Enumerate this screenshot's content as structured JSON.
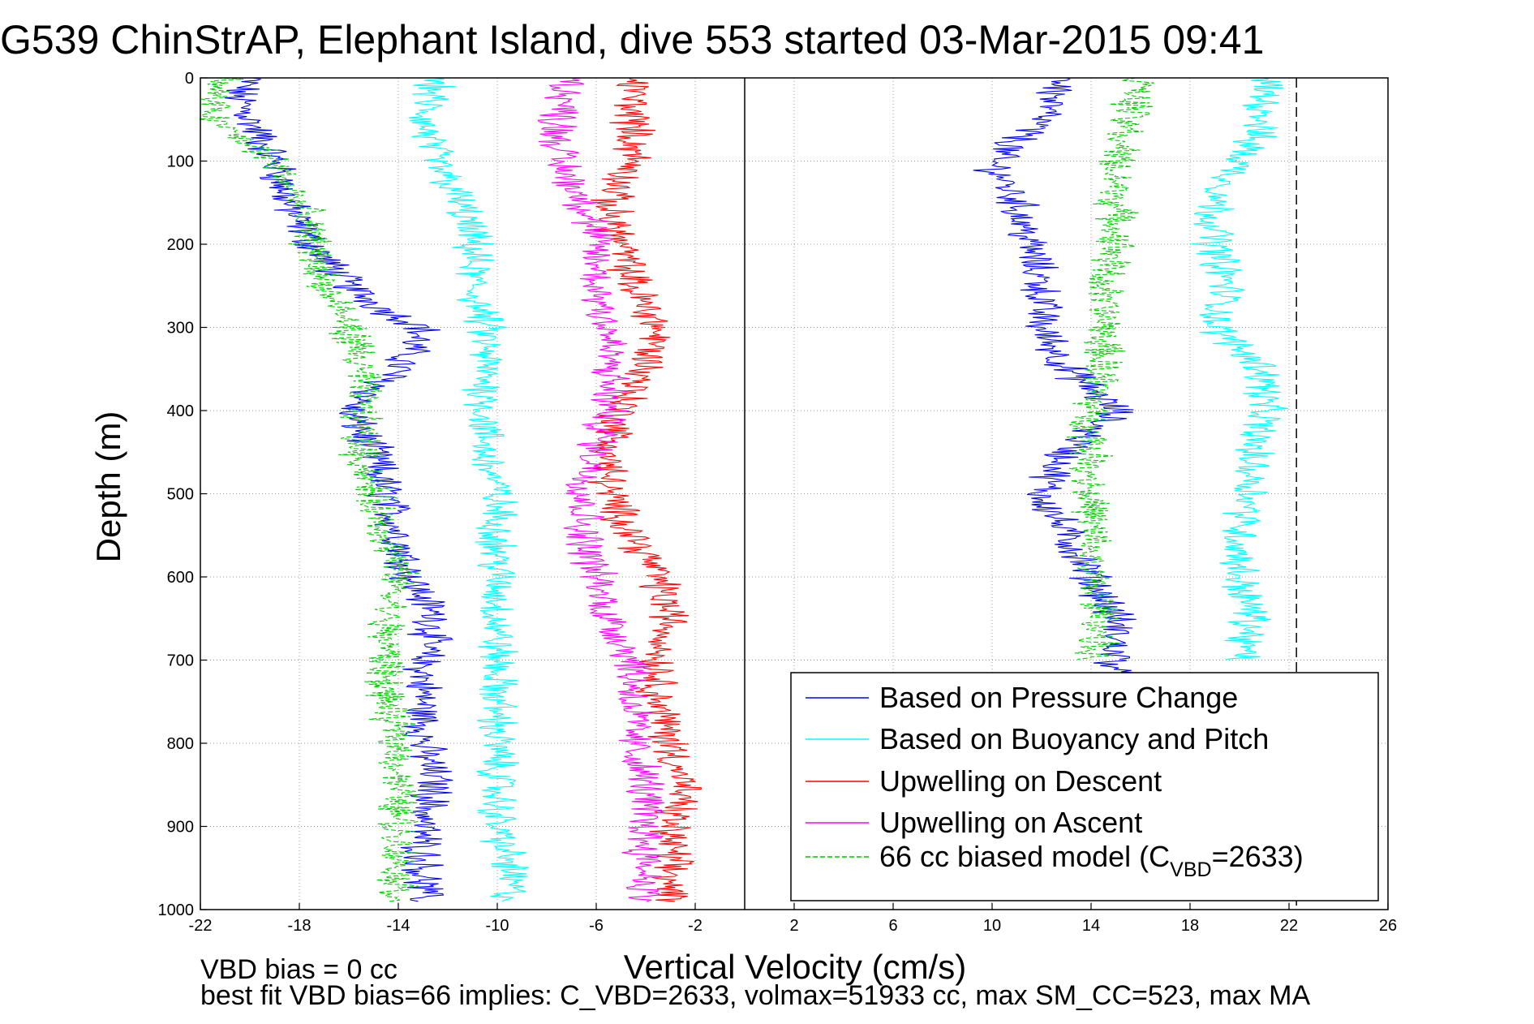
{
  "chart_data": {
    "type": "line",
    "title": "G539 ChinStrAP, Elephant Island, dive 553 started 03-Mar-2015 09:41",
    "xlabel": "Vertical Velocity (cm/s)",
    "ylabel": "Depth (m)",
    "xlim": [
      -22,
      26
    ],
    "ylim": [
      0,
      1000
    ],
    "y_reversed": true,
    "grid": true,
    "x_ticks": [
      -22,
      -18,
      -14,
      -10,
      -6,
      -2,
      2,
      6,
      10,
      14,
      18,
      22,
      26
    ],
    "y_ticks": [
      0,
      100,
      200,
      300,
      400,
      500,
      600,
      700,
      800,
      900,
      1000
    ],
    "reference_lines": [
      {
        "x": 0,
        "style": "solid",
        "color": "#000000"
      },
      {
        "x": 22.3,
        "style": "dashed",
        "color": "#000000"
      }
    ],
    "legend_placement": "bottom-right",
    "legend": [
      {
        "label": "Based on Pressure Change",
        "color": "#0000ff",
        "style": "solid"
      },
      {
        "label": "Based on Buoyancy and Pitch",
        "color": "#00ffff",
        "style": "solid"
      },
      {
        "label": "Upwelling on Descent",
        "color": "#ff0000",
        "style": "solid"
      },
      {
        "label": "Upwelling on Ascent",
        "color": "#ff00ff",
        "style": "solid"
      },
      {
        "label_main": "66 cc biased model (C",
        "label_sub": "VBD",
        "label_tail": "=2633)",
        "color": "#00cc00",
        "style": "dashed"
      }
    ],
    "series": [
      {
        "color": "#0000ff",
        "depth": [
          0,
          20,
          50,
          100,
          150,
          200,
          250,
          280,
          300,
          350,
          400,
          450,
          500,
          550,
          600,
          650,
          700,
          750,
          800,
          850,
          900,
          950,
          990
        ],
        "values": [
          -20,
          -20.5,
          -20,
          -19,
          -18.5,
          -17.5,
          -16,
          -14.5,
          -13,
          -14,
          -16,
          -15,
          -14.5,
          -14,
          -13.5,
          -12.5,
          -13,
          -13,
          -13,
          -12.5,
          -13,
          -13,
          -13
        ]
      },
      {
        "color": "#0000ff",
        "depth": [
          0,
          20,
          50,
          100,
          150,
          200,
          250,
          300,
          350,
          400,
          450,
          500,
          550,
          600,
          650,
          700,
          750
        ],
        "values": [
          13,
          12.5,
          12,
          10,
          11,
          11.5,
          12,
          12,
          13,
          15,
          13,
          12,
          13,
          14,
          15,
          15,
          15
        ]
      },
      {
        "color": "#00ffff",
        "depth": [
          0,
          50,
          100,
          150,
          200,
          250,
          300,
          350,
          400,
          450,
          500,
          550,
          600,
          650,
          700,
          750,
          800,
          850,
          900,
          950,
          990
        ],
        "values": [
          -12.5,
          -13,
          -12.5,
          -11.5,
          -11,
          -11,
          -10.5,
          -10.5,
          -10.5,
          -10.5,
          -10,
          -10,
          -10,
          -10,
          -10,
          -10,
          -10,
          -10,
          -10,
          -9.5,
          -9.5
        ]
      },
      {
        "color": "#00ffff",
        "depth": [
          0,
          50,
          100,
          150,
          200,
          250,
          300,
          350,
          400,
          450,
          500,
          550,
          600,
          650,
          700
        ],
        "values": [
          21,
          21,
          20,
          19,
          19,
          19.5,
          19,
          21,
          21,
          20.5,
          20.5,
          20,
          20,
          20.5,
          20
        ]
      },
      {
        "color": "#ff0000",
        "depth": [
          0,
          50,
          100,
          150,
          200,
          250,
          300,
          350,
          400,
          450,
          500,
          550,
          600,
          650,
          700,
          750,
          800,
          850,
          900,
          950,
          990
        ],
        "values": [
          -4.5,
          -4.5,
          -4.5,
          -5.5,
          -5,
          -4.5,
          -3.5,
          -4,
          -5,
          -5.5,
          -5.5,
          -4.5,
          -3.5,
          -3,
          -3.5,
          -3.5,
          -3,
          -2.5,
          -3,
          -3,
          -3
        ]
      },
      {
        "color": "#ff00ff",
        "depth": [
          0,
          50,
          100,
          150,
          200,
          250,
          300,
          350,
          400,
          450,
          500,
          550,
          600,
          650,
          700,
          750,
          800,
          850,
          900,
          950,
          990
        ],
        "values": [
          -7,
          -7.5,
          -7.5,
          -6.5,
          -6,
          -6,
          -5.5,
          -5.5,
          -5.5,
          -6,
          -6.5,
          -6.5,
          -6,
          -5.5,
          -4.5,
          -4.5,
          -4.5,
          -4,
          -4,
          -4,
          -4
        ]
      },
      {
        "color": "#00cc00",
        "dashed": true,
        "depth": [
          0,
          20,
          50,
          100,
          150,
          200,
          250,
          300,
          350,
          400,
          450,
          500,
          550,
          600,
          650,
          700,
          750,
          800,
          850,
          900,
          950,
          990
        ],
        "values": [
          -21,
          -21.5,
          -21.5,
          -19,
          -18,
          -17.5,
          -17,
          -16,
          -15.5,
          -15.5,
          -15.5,
          -15,
          -14.5,
          -14,
          -14.5,
          -14.5,
          -14.5,
          -14,
          -14,
          -14,
          -14,
          -14
        ]
      },
      {
        "color": "#00cc00",
        "dashed": true,
        "depth": [
          0,
          50,
          100,
          150,
          200,
          250,
          300,
          350,
          400,
          450,
          500,
          550,
          600,
          650,
          700
        ],
        "values": [
          16,
          15.5,
          15,
          15,
          15,
          14.5,
          14.5,
          14.5,
          14,
          14,
          14,
          14,
          14,
          14.5,
          14
        ]
      }
    ],
    "footer": [
      "VBD bias = 0 cc",
      "best fit VBD bias=66 implies: C_VBD=2633, volmax=51933 cc, max SM_CC=523, max MA"
    ]
  }
}
